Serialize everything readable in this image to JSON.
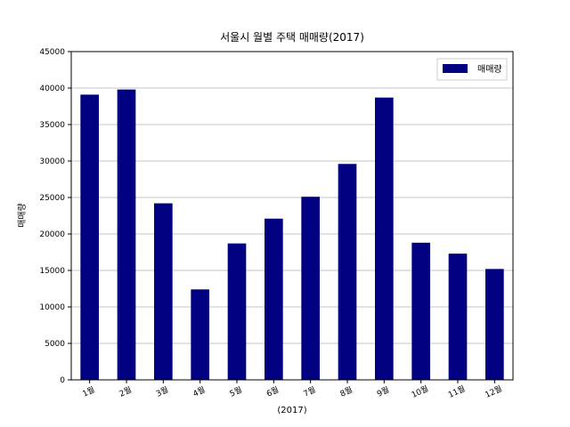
{
  "chart_data": {
    "type": "bar",
    "title": "서울시 월별 주택 매매량(2017)",
    "xlabel": "(2017)",
    "ylabel": "매매량",
    "categories": [
      "1월",
      "2월",
      "3월",
      "4월",
      "5월",
      "6월",
      "7월",
      "8월",
      "9월",
      "10월",
      "11월",
      "12월"
    ],
    "series": [
      {
        "name": "매매량",
        "values": [
          39100,
          39800,
          24200,
          12400,
          18700,
          22100,
          25100,
          29600,
          38700,
          18800,
          17300,
          15200
        ]
      }
    ],
    "ylim": [
      0,
      45000
    ],
    "yticks": [
      0,
      5000,
      10000,
      15000,
      20000,
      25000,
      30000,
      35000,
      40000,
      45000
    ],
    "grid": "y",
    "legend_position": "top-right",
    "colors": {
      "bar": "#000080",
      "grid": "#b0b0b0"
    }
  }
}
